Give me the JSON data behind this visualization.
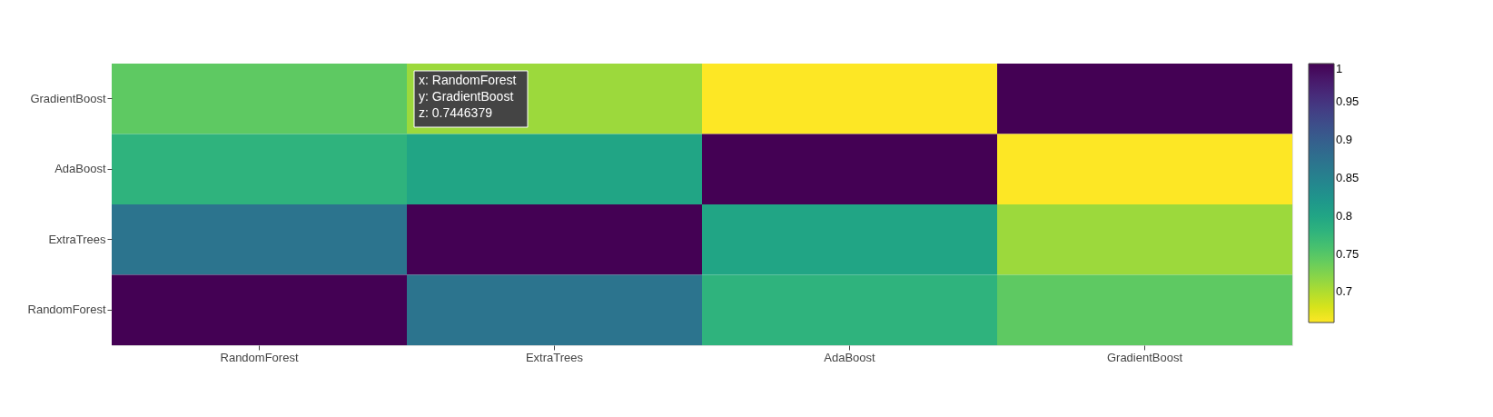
{
  "chart_data": {
    "type": "heatmap",
    "categories": [
      "RandomForest",
      "ExtraTrees",
      "AdaBoost",
      "GradientBoost"
    ],
    "y_categories": [
      "GradientBoost",
      "AdaBoost",
      "ExtraTrees",
      "RandomForest"
    ],
    "cells": [
      [
        0.7446379,
        0.71,
        0.66,
        1
      ],
      [
        0.78,
        0.8,
        1,
        0.66
      ],
      [
        0.87,
        1,
        0.8,
        0.71
      ],
      [
        1,
        0.87,
        0.78,
        0.7446379
      ]
    ],
    "clim": [
      0.66,
      1
    ],
    "cticks": [
      0.7,
      0.75,
      0.8,
      0.85,
      0.9,
      0.95,
      1
    ],
    "annotations": [
      "x: RandomForest\ny: GradientBoost\nz: 0.7446379"
    ]
  }
}
